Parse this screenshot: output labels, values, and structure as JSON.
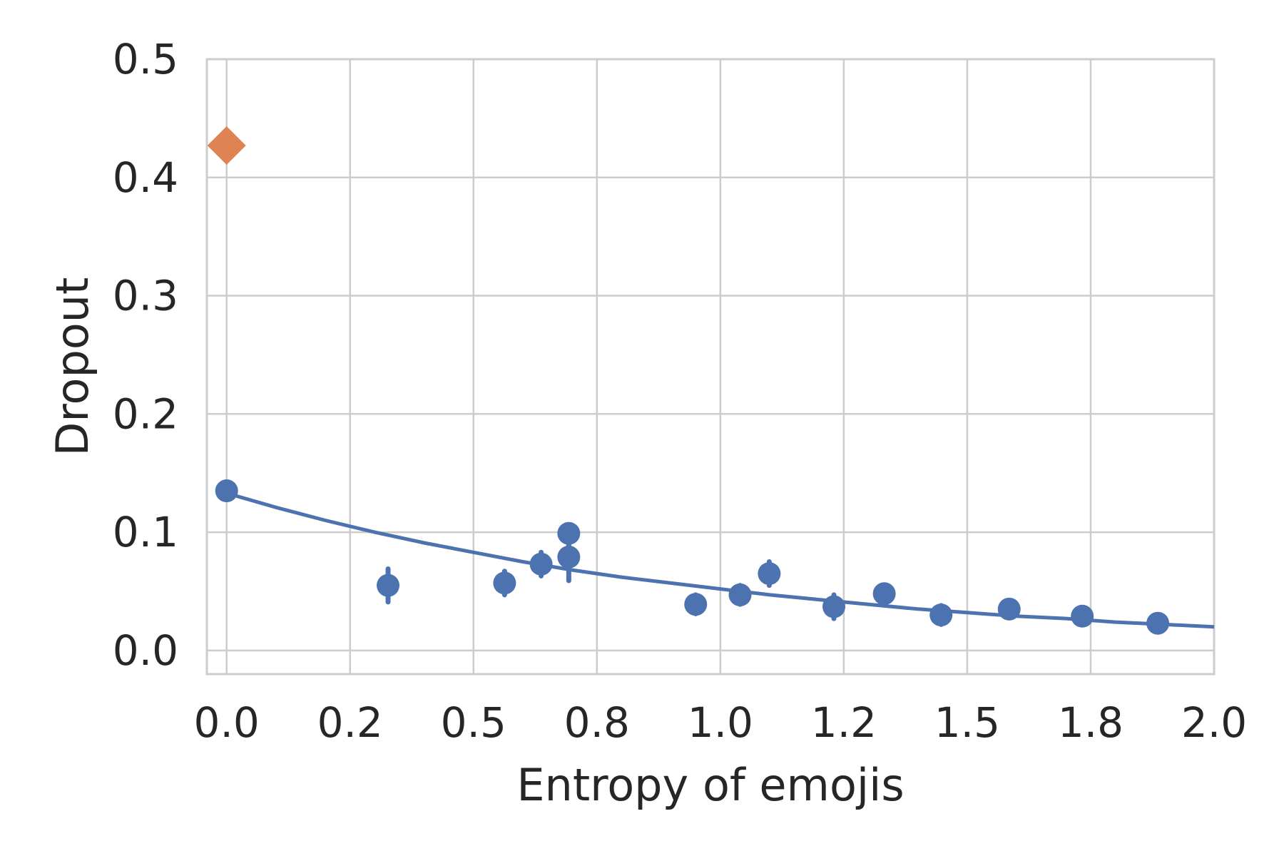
{
  "chart_data": {
    "type": "scatter",
    "title": "",
    "xlabel": "Entropy of emojis",
    "ylabel": "Dropout",
    "xlim": [
      -0.04,
      2.0
    ],
    "ylim": [
      -0.02,
      0.5
    ],
    "xticks": [
      0.0,
      0.25,
      0.5,
      0.75,
      1.0,
      1.25,
      1.5,
      1.75,
      2.0
    ],
    "xtick_labels": [
      "0.0",
      "0.2",
      "0.5",
      "0.8",
      "1.0",
      "1.2",
      "1.5",
      "1.8",
      "2.0"
    ],
    "yticks": [
      0.0,
      0.1,
      0.2,
      0.3,
      0.4,
      0.5
    ],
    "ytick_labels": [
      "0.0",
      "0.1",
      "0.2",
      "0.3",
      "0.4",
      "0.5"
    ],
    "grid": true,
    "legend": "none",
    "colors": {
      "series": "#4c72b0",
      "highlight": "#dd8452",
      "grid": "#cccccc",
      "text": "#262626"
    },
    "points": [
      {
        "x": 0.0,
        "y": 0.135,
        "err": 0.004
      },
      {
        "x": 0.327,
        "y": 0.055,
        "err": 0.014
      },
      {
        "x": 0.563,
        "y": 0.057,
        "err": 0.01
      },
      {
        "x": 0.637,
        "y": 0.073,
        "err": 0.01
      },
      {
        "x": 0.693,
        "y": 0.079,
        "err": 0.02
      },
      {
        "x": 0.693,
        "y": 0.099,
        "err": 0.004
      },
      {
        "x": 0.95,
        "y": 0.039,
        "err": 0.008
      },
      {
        "x": 1.04,
        "y": 0.047,
        "err": 0.008
      },
      {
        "x": 1.099,
        "y": 0.065,
        "err": 0.01
      },
      {
        "x": 1.23,
        "y": 0.037,
        "err": 0.01
      },
      {
        "x": 1.332,
        "y": 0.048,
        "err": 0.007
      },
      {
        "x": 1.447,
        "y": 0.03,
        "err": 0.008
      },
      {
        "x": 1.585,
        "y": 0.035,
        "err": 0.004
      },
      {
        "x": 1.733,
        "y": 0.029,
        "err": 0.003
      },
      {
        "x": 1.886,
        "y": 0.023,
        "err": 0.003
      }
    ],
    "highlight_point": {
      "x": 0.0,
      "y": 0.427,
      "marker": "diamond"
    },
    "fit_curve": {
      "x": [
        0.0,
        0.1,
        0.2,
        0.3,
        0.4,
        0.5,
        0.6,
        0.7,
        0.8,
        0.9,
        1.0,
        1.1,
        1.2,
        1.3,
        1.4,
        1.5,
        1.6,
        1.7,
        1.8,
        1.9,
        2.0
      ],
      "y": [
        0.133,
        0.121,
        0.11,
        0.1,
        0.091,
        0.083,
        0.075,
        0.068,
        0.062,
        0.057,
        0.052,
        0.047,
        0.043,
        0.039,
        0.035,
        0.032,
        0.029,
        0.027,
        0.024,
        0.022,
        0.02
      ]
    }
  }
}
